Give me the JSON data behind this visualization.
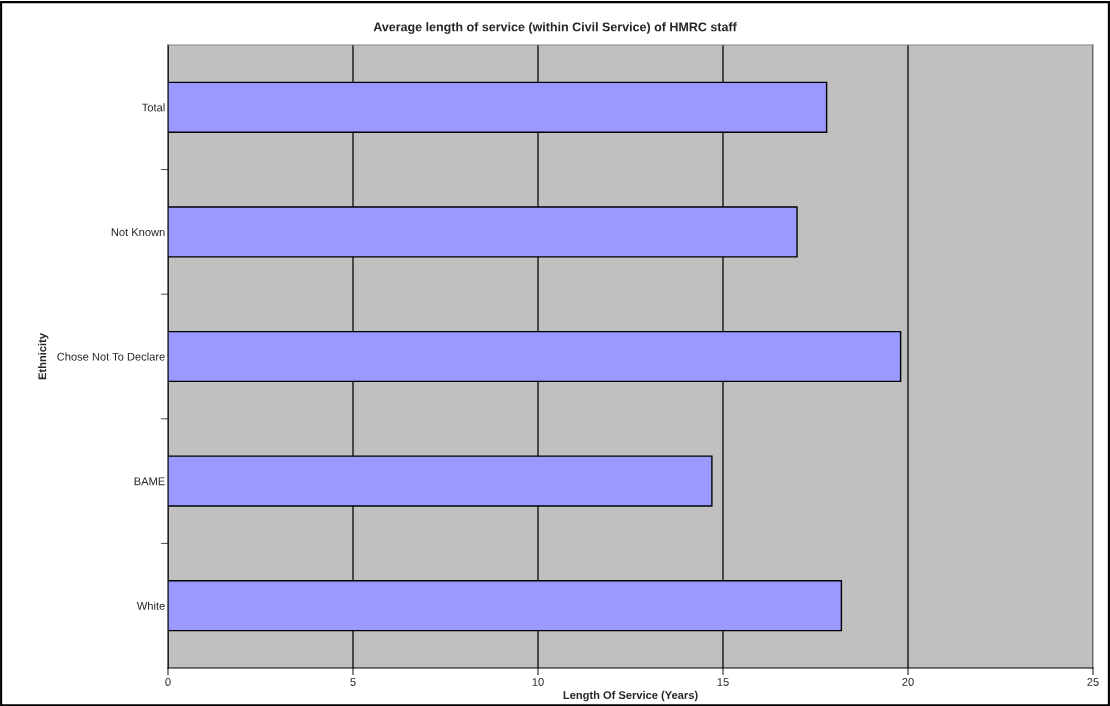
{
  "chart_data": {
    "type": "bar",
    "orientation": "horizontal",
    "title": "Average length of service (within Civil Service) of HMRC staff",
    "xlabel": "Length Of Service (Years)",
    "ylabel": "Ethnicity",
    "categories": [
      "Total",
      "Not Known",
      "Chose Not To Declare",
      "BAME",
      "White"
    ],
    "values": [
      17.8,
      17.0,
      19.8,
      14.7,
      18.2
    ],
    "color": "#9999ff",
    "xlim": [
      0,
      25
    ],
    "xticks": [
      0,
      5,
      10,
      15,
      20,
      25
    ],
    "grid": "x"
  }
}
